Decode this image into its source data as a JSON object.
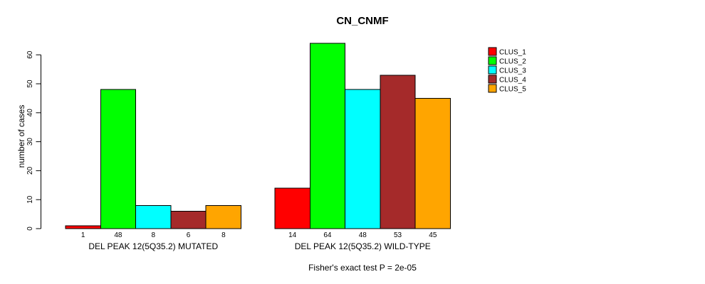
{
  "chart_data": {
    "type": "bar",
    "title": "CN_CNMF",
    "ylabel": "number of cases",
    "annotation": "Fisher's exact test P = 2e-05",
    "ylim": [
      0,
      60
    ],
    "yticks": [
      0,
      10,
      20,
      30,
      40,
      50,
      60
    ],
    "grid": false,
    "legend": {
      "position": "right",
      "entries": [
        {
          "label": "CLUS_1",
          "color": "#FF0000"
        },
        {
          "label": "CLUS_2",
          "color": "#00FF00"
        },
        {
          "label": "CLUS_3",
          "color": "#00FFFF"
        },
        {
          "label": "CLUS_4",
          "color": "#A52A2A"
        },
        {
          "label": "CLUS_5",
          "color": "#FFA500"
        }
      ]
    },
    "groups": [
      {
        "label": "DEL PEAK 12(5Q35.2) MUTATED",
        "values": [
          1,
          48,
          8,
          6,
          8
        ]
      },
      {
        "label": "DEL PEAK 12(5Q35.2) WILD-TYPE",
        "values": [
          14,
          64,
          48,
          53,
          45
        ]
      }
    ]
  }
}
